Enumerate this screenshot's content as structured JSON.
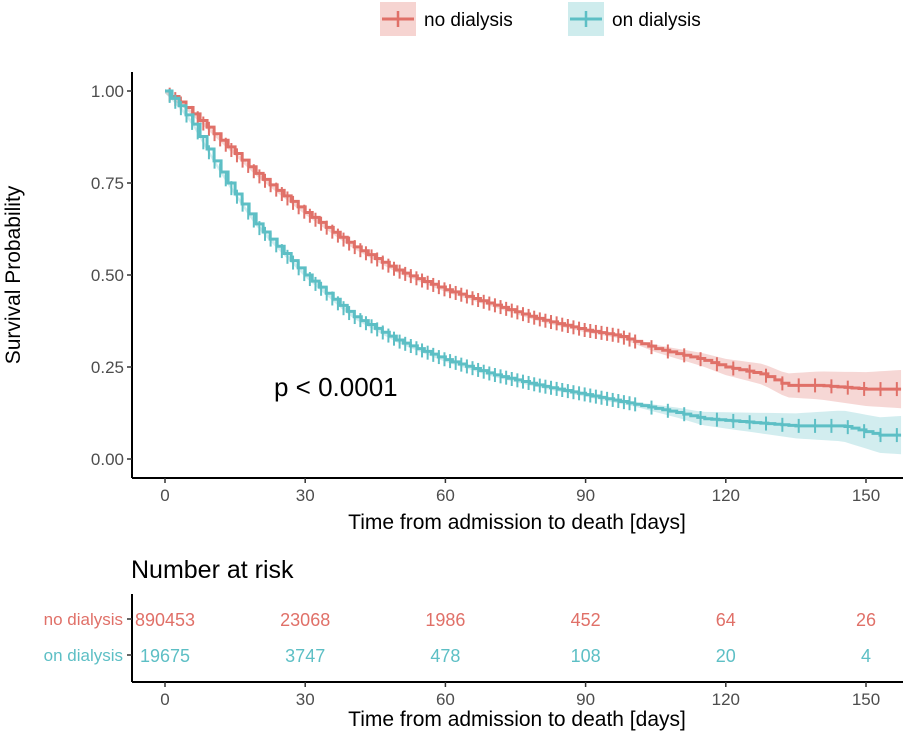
{
  "chart_data": {
    "type": "line",
    "subtype": "kaplan-meier",
    "ylabel": "Survival Probability",
    "xlabel": "Time from admission to death [days]",
    "xlim": [
      -5,
      158
    ],
    "ylim": [
      -0.05,
      1.05
    ],
    "xticks": [
      0,
      30,
      60,
      90,
      120,
      150
    ],
    "yticks": [
      "0.00",
      "0.25",
      "0.50",
      "0.75",
      "1.00"
    ],
    "annotation": "p < 0.0001",
    "legend_position": "top",
    "series": [
      {
        "name": "no dialysis",
        "color": "#E07068",
        "x": [
          0,
          5,
          10,
          15,
          20,
          30,
          40,
          50,
          60,
          70,
          80,
          90,
          97,
          105,
          115,
          120,
          128,
          133,
          140,
          150,
          158
        ],
        "y": [
          1.0,
          0.95,
          0.89,
          0.83,
          0.77,
          0.67,
          0.58,
          0.51,
          0.46,
          0.42,
          0.38,
          0.35,
          0.335,
          0.3,
          0.27,
          0.25,
          0.23,
          0.2,
          0.2,
          0.19,
          0.19
        ]
      },
      {
        "name": "on dialysis",
        "color": "#5DBFC5",
        "x": [
          0,
          3,
          6,
          10,
          15,
          20,
          30,
          40,
          50,
          60,
          70,
          80,
          90,
          100,
          110,
          115,
          125,
          135,
          145,
          153,
          158
        ],
        "y": [
          1.0,
          0.96,
          0.91,
          0.82,
          0.72,
          0.63,
          0.5,
          0.39,
          0.32,
          0.27,
          0.23,
          0.2,
          0.175,
          0.15,
          0.125,
          0.11,
          0.1,
          0.09,
          0.09,
          0.065,
          0.065
        ]
      }
    ],
    "risk_table": {
      "title": "Number at risk",
      "times": [
        0,
        30,
        60,
        90,
        120,
        150
      ],
      "rows": [
        {
          "name": "no dialysis",
          "values": [
            "890453",
            "23068",
            "1986",
            "452",
            "64",
            "26"
          ]
        },
        {
          "name": "on dialysis",
          "values": [
            "19675",
            "3747",
            "478",
            "108",
            "20",
            "4"
          ]
        }
      ]
    }
  }
}
